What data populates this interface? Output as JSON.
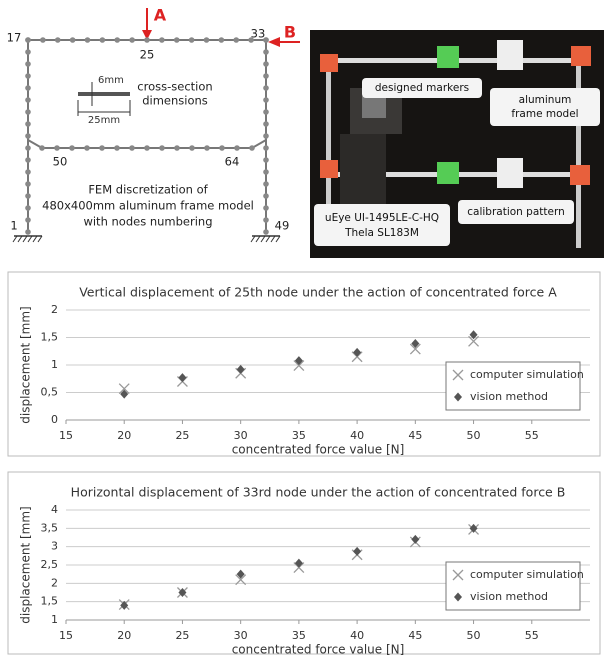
{
  "diagram": {
    "nodes": [
      "17",
      "25",
      "33",
      "1",
      "49",
      "50",
      "64"
    ],
    "forces": [
      "A",
      "B"
    ],
    "section_height": "6mm",
    "section_width": "25mm",
    "section_caption": [
      "cross-section",
      "dimensions"
    ],
    "caption": [
      "FEM discretization of",
      "480x400mm aluminum frame model",
      "with nodes numbering"
    ]
  },
  "photo": {
    "markers_label": "designed markers",
    "frame_label": [
      "aluminum",
      "frame model"
    ],
    "camera_label": [
      "uEye UI-1495LE-C-HQ",
      "Thela SL183M"
    ],
    "pattern_label": "calibration pattern"
  },
  "chart_data": [
    {
      "type": "scatter",
      "title": "Vertical displacement of 25th node under the action of concentrated force A",
      "xlabel": "concentrated force value [N]",
      "ylabel": "displacement [mm]",
      "x": [
        20,
        25,
        30,
        35,
        40,
        45,
        50
      ],
      "series": [
        {
          "name": "computer simulation",
          "color": "#999999",
          "marker": "x",
          "values": [
            0.57,
            0.7,
            0.85,
            0.99,
            1.15,
            1.29,
            1.43
          ]
        },
        {
          "name": "vision method",
          "color": "#555555",
          "marker": "diamond",
          "values": [
            0.47,
            0.77,
            0.92,
            1.08,
            1.23,
            1.39,
            1.55
          ]
        }
      ],
      "xlim": [
        15,
        60
      ],
      "xticks": [
        15,
        20,
        25,
        30,
        35,
        40,
        45,
        50,
        55
      ],
      "ylim": [
        0,
        2
      ],
      "yticks": [
        0,
        {
          "value": 0.5,
          "label": "0,5"
        },
        1,
        {
          "value": 1.5,
          "label": "1,5"
        },
        2
      ],
      "grid": true,
      "legend": "right"
    },
    {
      "type": "scatter",
      "title": "Horizontal displacement of 33rd node under the action of concentrated force B",
      "xlabel": "concentrated force value [N]",
      "ylabel": "displacement [mm]",
      "x": [
        20,
        25,
        30,
        35,
        40,
        45,
        50
      ],
      "series": [
        {
          "name": "computer simulation",
          "color": "#999999",
          "marker": "x",
          "values": [
            1.42,
            1.75,
            2.1,
            2.43,
            2.78,
            3.13,
            3.47
          ]
        },
        {
          "name": "vision method",
          "color": "#555555",
          "marker": "diamond",
          "values": [
            1.4,
            1.75,
            2.25,
            2.55,
            2.87,
            3.2,
            3.5
          ]
        }
      ],
      "xlim": [
        15,
        60
      ],
      "xticks": [
        15,
        20,
        25,
        30,
        35,
        40,
        45,
        50,
        55
      ],
      "ylim": [
        1,
        4
      ],
      "yticks": [
        1,
        {
          "value": 1.5,
          "label": "1,5"
        },
        2,
        {
          "value": 2.5,
          "label": "2,5"
        },
        3,
        {
          "value": 3.5,
          "label": "3,5"
        },
        4
      ],
      "grid": true,
      "legend": "right"
    }
  ]
}
